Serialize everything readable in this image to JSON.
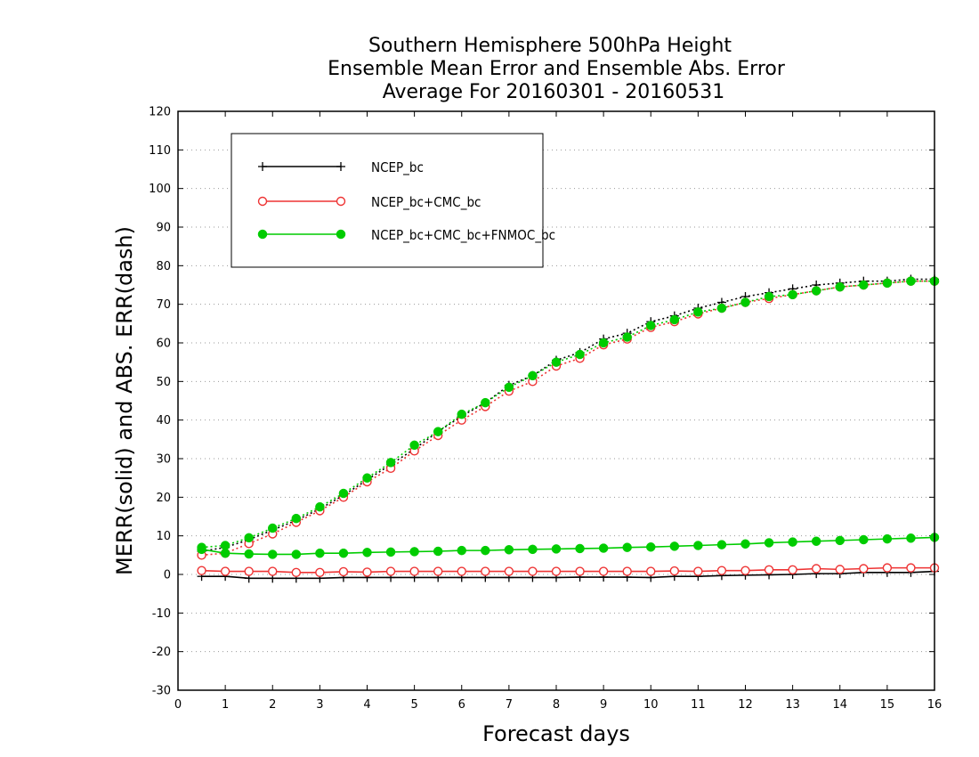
{
  "chart_data": {
    "type": "line",
    "title": [
      "Southern Hemisphere 500hPa Height",
      "Ensemble Mean Error and Ensemble Abs. Error",
      "Average For 20160301 - 20160531"
    ],
    "xlabel": "Forecast days",
    "ylabel": "MERR(solid) and ABS. ERR(dash)",
    "xlim": [
      0,
      16
    ],
    "ylim": [
      -30,
      120
    ],
    "xticks": [
      0,
      1,
      2,
      3,
      4,
      5,
      6,
      7,
      8,
      9,
      10,
      11,
      12,
      13,
      14,
      15,
      16
    ],
    "yticks": [
      -30,
      -20,
      -10,
      0,
      10,
      20,
      30,
      40,
      50,
      60,
      70,
      80,
      90,
      100,
      110,
      120
    ],
    "grid": "horizontal dotted",
    "legend_position": "top-left",
    "x": [
      0.5,
      1,
      1.5,
      2,
      2.5,
      3,
      3.5,
      4,
      4.5,
      5,
      5.5,
      6,
      6.5,
      7,
      7.5,
      8,
      8.5,
      9,
      9.5,
      10,
      10.5,
      11,
      11.5,
      12,
      12.5,
      13,
      13.5,
      14,
      14.5,
      15,
      15.5,
      16
    ],
    "series": [
      {
        "name": "NCEP_bc",
        "color": "#000000",
        "marker": "plus",
        "merr": [
          -0.5,
          -0.5,
          -1,
          -1,
          -1,
          -1,
          -0.8,
          -0.8,
          -0.8,
          -0.8,
          -0.8,
          -0.8,
          -0.8,
          -0.8,
          -0.8,
          -0.8,
          -0.7,
          -0.7,
          -0.7,
          -0.8,
          -0.5,
          -0.5,
          -0.3,
          -0.2,
          -0.1,
          0,
          0.2,
          0.2,
          0.5,
          0.5,
          0.5,
          0.8
        ],
        "abs_err": [
          6,
          7,
          9,
          11.5,
          14,
          17,
          20.5,
          24.5,
          28.5,
          32.5,
          37,
          41,
          44.5,
          49,
          51.5,
          55.5,
          57.5,
          61,
          62.5,
          65.5,
          67,
          69,
          70.5,
          72,
          73,
          74,
          75,
          75.5,
          76,
          76,
          76.5,
          76.5
        ]
      },
      {
        "name": "NCEP_bc+CMC_bc",
        "color": "#ee3333",
        "marker": "open-circle",
        "merr": [
          1,
          0.8,
          0.8,
          0.8,
          0.5,
          0.5,
          0.7,
          0.6,
          0.8,
          0.8,
          0.8,
          0.8,
          0.8,
          0.8,
          0.8,
          0.8,
          0.8,
          0.8,
          0.8,
          0.8,
          0.9,
          0.8,
          1,
          1,
          1.2,
          1.2,
          1.5,
          1.3,
          1.5,
          1.7,
          1.7,
          1.7
        ],
        "abs_err": [
          5,
          5.5,
          8,
          10.5,
          13.5,
          16.5,
          20,
          24,
          27.5,
          32,
          36,
          40,
          43.5,
          47.5,
          50,
          54,
          56,
          59.5,
          61,
          64,
          65.5,
          67.5,
          69,
          70.5,
          71.5,
          72.5,
          73.5,
          74.5,
          75,
          75.5,
          76,
          76
        ]
      },
      {
        "name": "NCEP_bc+CMC_bc+FNMOC_bc",
        "color": "#00cc00",
        "marker": "filled-circle",
        "merr": [
          6.5,
          5.5,
          5.3,
          5.2,
          5.2,
          5.5,
          5.5,
          5.7,
          5.8,
          5.9,
          6,
          6.2,
          6.2,
          6.4,
          6.5,
          6.6,
          6.7,
          6.8,
          7,
          7.1,
          7.3,
          7.5,
          7.7,
          7.9,
          8.2,
          8.4,
          8.6,
          8.8,
          9,
          9.2,
          9.4,
          9.6
        ],
        "abs_err": [
          7,
          7.5,
          9.5,
          12,
          14.5,
          17.5,
          21,
          25,
          29,
          33.5,
          37,
          41.5,
          44.5,
          48.5,
          51.5,
          55,
          57,
          60,
          61.5,
          64.5,
          66,
          68,
          69,
          70.5,
          72,
          72.5,
          73.5,
          74.5,
          75,
          75.5,
          76,
          76
        ]
      }
    ]
  }
}
